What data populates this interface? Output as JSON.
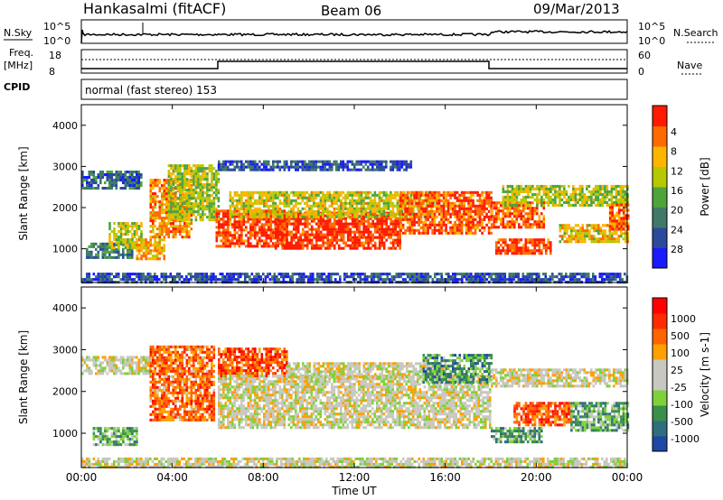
{
  "header": {
    "station": "Hankasalmi (fitACF)",
    "beam": "Beam 06",
    "date": "09/Mar/2013"
  },
  "status_panels": {
    "nsky_label": "N.Sky",
    "nsky_ticks": [
      "10^5",
      "10^0"
    ],
    "nsearch_label": "N.Search",
    "nsearch_ticks": [
      "10^5",
      "10^0"
    ],
    "freq_label": "Freq.",
    "freq_unit": "[MHz]",
    "freq_ticks": [
      "18",
      "8"
    ],
    "nave_label": "Nave",
    "nave_ticks": [
      "60",
      "0"
    ],
    "cpid_label": "CPID",
    "cpid_text": "normal (fast stereo) 153"
  },
  "chart_data": [
    {
      "type": "heatmap",
      "name": "power",
      "ylabel": "Slant Range [km]",
      "yticks": [
        1000,
        2000,
        3000,
        4000
      ],
      "ylim": [
        180,
        4500
      ],
      "xlim_hours": [
        0,
        24
      ],
      "colorbar_label": "Power [dB]",
      "colorbar_ticks": [
        "4",
        "8",
        "12",
        "16",
        "20",
        "24",
        "28"
      ],
      "colors": [
        "#1a1aff",
        "#2c4a9c",
        "#3f7a68",
        "#4da43c",
        "#b6c800",
        "#ffb400",
        "#ff6a00",
        "#ff1a00"
      ],
      "regions": [
        {
          "t0": 0.0,
          "t1": 2.6,
          "r0": 2450,
          "r1": 2900,
          "val": 0.25
        },
        {
          "t0": 0.2,
          "t1": 2.2,
          "r0": 800,
          "r1": 1150,
          "val": 0.3
        },
        {
          "t0": 1.2,
          "t1": 2.6,
          "r0": 1050,
          "r1": 1650,
          "val": 0.55
        },
        {
          "t0": 2.4,
          "t1": 3.6,
          "r0": 750,
          "r1": 1250,
          "val": 0.7
        },
        {
          "t0": 3.0,
          "t1": 4.8,
          "r0": 1300,
          "r1": 2700,
          "val": 0.75
        },
        {
          "t0": 3.8,
          "t1": 6.0,
          "r0": 1700,
          "r1": 3050,
          "val": 0.55
        },
        {
          "t0": 5.9,
          "t1": 9.0,
          "r0": 1050,
          "r1": 1950,
          "val": 0.9
        },
        {
          "t0": 8.5,
          "t1": 14.0,
          "r0": 1000,
          "r1": 1900,
          "val": 0.92
        },
        {
          "t0": 6.5,
          "t1": 15.5,
          "r0": 1800,
          "r1": 2400,
          "val": 0.6
        },
        {
          "t0": 14.0,
          "t1": 18.0,
          "r0": 1350,
          "r1": 2400,
          "val": 0.85
        },
        {
          "t0": 18.0,
          "t1": 20.3,
          "r0": 1550,
          "r1": 2150,
          "val": 0.85
        },
        {
          "t0": 18.2,
          "t1": 20.6,
          "r0": 900,
          "r1": 1250,
          "val": 0.9
        },
        {
          "t0": 18.5,
          "t1": 24.0,
          "r0": 2050,
          "r1": 2550,
          "val": 0.55
        },
        {
          "t0": 21.0,
          "t1": 24.0,
          "r0": 1150,
          "r1": 1600,
          "val": 0.65
        },
        {
          "t0": 23.2,
          "t1": 24.0,
          "r0": 1450,
          "r1": 2100,
          "val": 0.85
        },
        {
          "t0": 6.0,
          "t1": 14.5,
          "r0": 2900,
          "r1": 3150,
          "val": 0.2
        },
        {
          "t0": 0.0,
          "t1": 24.0,
          "r0": 180,
          "r1": 420,
          "val": 0.2
        }
      ]
    },
    {
      "type": "heatmap",
      "name": "velocity",
      "ylabel": "Slant Range [km]",
      "yticks": [
        1000,
        2000,
        3000,
        4000
      ],
      "ylim": [
        180,
        4500
      ],
      "xlim_hours": [
        0,
        24
      ],
      "colorbar_label": "Velocity [m s-1]",
      "colorbar_ticks": [
        "1000",
        "500",
        "100",
        "25",
        "-25",
        "-100",
        "-500",
        "-1000"
      ],
      "colors": [
        "#1f47a5",
        "#2f6e7c",
        "#3a8f4a",
        "#7fd13b",
        "#c8c8c0",
        "#c8c8c0",
        "#ffa000",
        "#ff6400",
        "#ff2a00",
        "#ff0000"
      ],
      "regions": [
        {
          "t0": 0.0,
          "t1": 3.0,
          "r0": 2450,
          "r1": 2850,
          "val": 0.5
        },
        {
          "t0": 0.5,
          "t1": 2.4,
          "r0": 750,
          "r1": 1150,
          "val": 0.3
        },
        {
          "t0": 3.0,
          "t1": 5.8,
          "r0": 1300,
          "r1": 3100,
          "val": 0.75
        },
        {
          "t0": 6.0,
          "t1": 9.0,
          "r0": 2400,
          "r1": 3050,
          "val": 0.8
        },
        {
          "t0": 6.0,
          "t1": 18.0,
          "r0": 1150,
          "r1": 2400,
          "val": 0.5
        },
        {
          "t0": 9.0,
          "t1": 16.0,
          "r0": 2350,
          "r1": 2700,
          "val": 0.5
        },
        {
          "t0": 15.0,
          "t1": 18.0,
          "r0": 2250,
          "r1": 2900,
          "val": 0.25
        },
        {
          "t0": 18.0,
          "t1": 20.2,
          "r0": 800,
          "r1": 1150,
          "val": 0.28
        },
        {
          "t0": 18.0,
          "t1": 24.0,
          "r0": 2100,
          "r1": 2550,
          "val": 0.5
        },
        {
          "t0": 19.0,
          "t1": 21.5,
          "r0": 1200,
          "r1": 1750,
          "val": 0.8
        },
        {
          "t0": 21.5,
          "t1": 24.0,
          "r0": 1100,
          "r1": 1750,
          "val": 0.3
        },
        {
          "t0": 0.0,
          "t1": 24.0,
          "r0": 180,
          "r1": 420,
          "val": 0.5
        }
      ]
    }
  ],
  "x_axis": {
    "ticks": [
      "00:00",
      "04:00",
      "08:00",
      "12:00",
      "16:00",
      "20:00",
      "00:00"
    ],
    "label": "Time UT"
  }
}
